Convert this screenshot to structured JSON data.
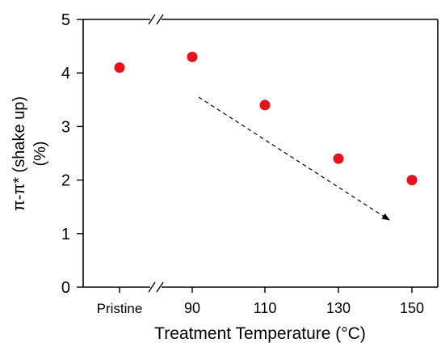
{
  "chart_data": {
    "type": "scatter",
    "categories": [
      "Pristine",
      "90",
      "110",
      "130",
      "150"
    ],
    "values": [
      4.1,
      4.3,
      3.4,
      2.4,
      2.0
    ],
    "xlabel": "Treatment Temperature  (°C)",
    "ylabel": [
      "π-π* (shake up)",
      "(%)"
    ],
    "ylim": [
      0,
      5
    ],
    "yticks": [
      0,
      1,
      2,
      3,
      4,
      5
    ],
    "grid": false,
    "axis_break": "between Pristine and 90",
    "trend_arrow": {
      "style": "dashed",
      "direction": "decreasing"
    },
    "marker_color": "#e8101a"
  }
}
